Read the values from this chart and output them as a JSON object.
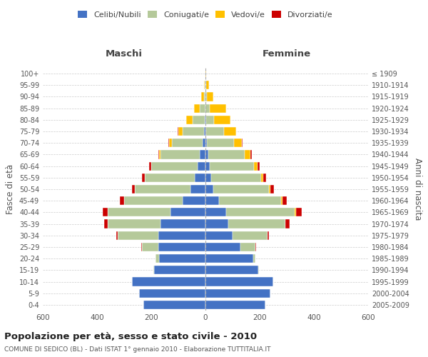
{
  "age_groups": [
    "0-4",
    "5-9",
    "10-14",
    "15-19",
    "20-24",
    "25-29",
    "30-34",
    "35-39",
    "40-44",
    "45-49",
    "50-54",
    "55-59",
    "60-64",
    "65-69",
    "70-74",
    "75-79",
    "80-84",
    "85-89",
    "90-94",
    "95-99",
    "100+"
  ],
  "birth_years": [
    "2005-2009",
    "2000-2004",
    "1995-1999",
    "1990-1994",
    "1985-1989",
    "1980-1984",
    "1975-1979",
    "1970-1974",
    "1965-1969",
    "1960-1964",
    "1955-1959",
    "1950-1954",
    "1945-1949",
    "1940-1944",
    "1935-1939",
    "1930-1934",
    "1925-1929",
    "1920-1924",
    "1915-1919",
    "1910-1914",
    "≤ 1909"
  ],
  "maschi": {
    "celibi": [
      230,
      245,
      270,
      190,
      170,
      175,
      175,
      165,
      130,
      85,
      55,
      40,
      30,
      20,
      10,
      5,
      2,
      1,
      0,
      0,
      0
    ],
    "coniugati": [
      0,
      0,
      0,
      2,
      15,
      60,
      150,
      195,
      230,
      215,
      205,
      185,
      170,
      145,
      115,
      80,
      45,
      20,
      5,
      2,
      0
    ],
    "vedovi": [
      0,
      0,
      0,
      0,
      0,
      0,
      0,
      0,
      0,
      0,
      0,
      0,
      0,
      5,
      10,
      15,
      25,
      20,
      10,
      4,
      1
    ],
    "divorziati": [
      0,
      0,
      0,
      0,
      0,
      2,
      5,
      15,
      20,
      15,
      10,
      8,
      8,
      5,
      2,
      2,
      0,
      0,
      0,
      0,
      0
    ]
  },
  "femmine": {
    "nubili": [
      220,
      240,
      250,
      195,
      175,
      130,
      100,
      85,
      75,
      50,
      30,
      20,
      15,
      10,
      5,
      3,
      2,
      1,
      0,
      0,
      0
    ],
    "coniugate": [
      0,
      0,
      0,
      2,
      10,
      55,
      130,
      210,
      255,
      230,
      205,
      185,
      165,
      135,
      100,
      65,
      30,
      15,
      5,
      2,
      0
    ],
    "vedove": [
      0,
      0,
      0,
      0,
      0,
      0,
      0,
      0,
      5,
      5,
      5,
      8,
      12,
      20,
      30,
      45,
      60,
      60,
      25,
      10,
      3
    ],
    "divorziate": [
      0,
      0,
      0,
      0,
      0,
      2,
      5,
      15,
      20,
      15,
      12,
      10,
      8,
      5,
      2,
      1,
      0,
      0,
      0,
      0,
      0
    ]
  },
  "colors": {
    "celibi_nubili": "#4472c4",
    "coniugati": "#b5c99a",
    "vedovi": "#ffc000",
    "divorziati": "#cc0000"
  },
  "xlim": 600,
  "title": "Popolazione per età, sesso e stato civile - 2010",
  "subtitle": "COMUNE DI SEDICO (BL) - Dati ISTAT 1° gennaio 2010 - Elaborazione TUTTITALIA.IT",
  "ylabel_left": "Fasce di età",
  "ylabel_right": "Anni di nascita",
  "legend_labels": [
    "Celibi/Nubili",
    "Coniugati/e",
    "Vedovi/e",
    "Divorziati/e"
  ],
  "maschi_label": "Maschi",
  "femmine_label": "Femmine"
}
